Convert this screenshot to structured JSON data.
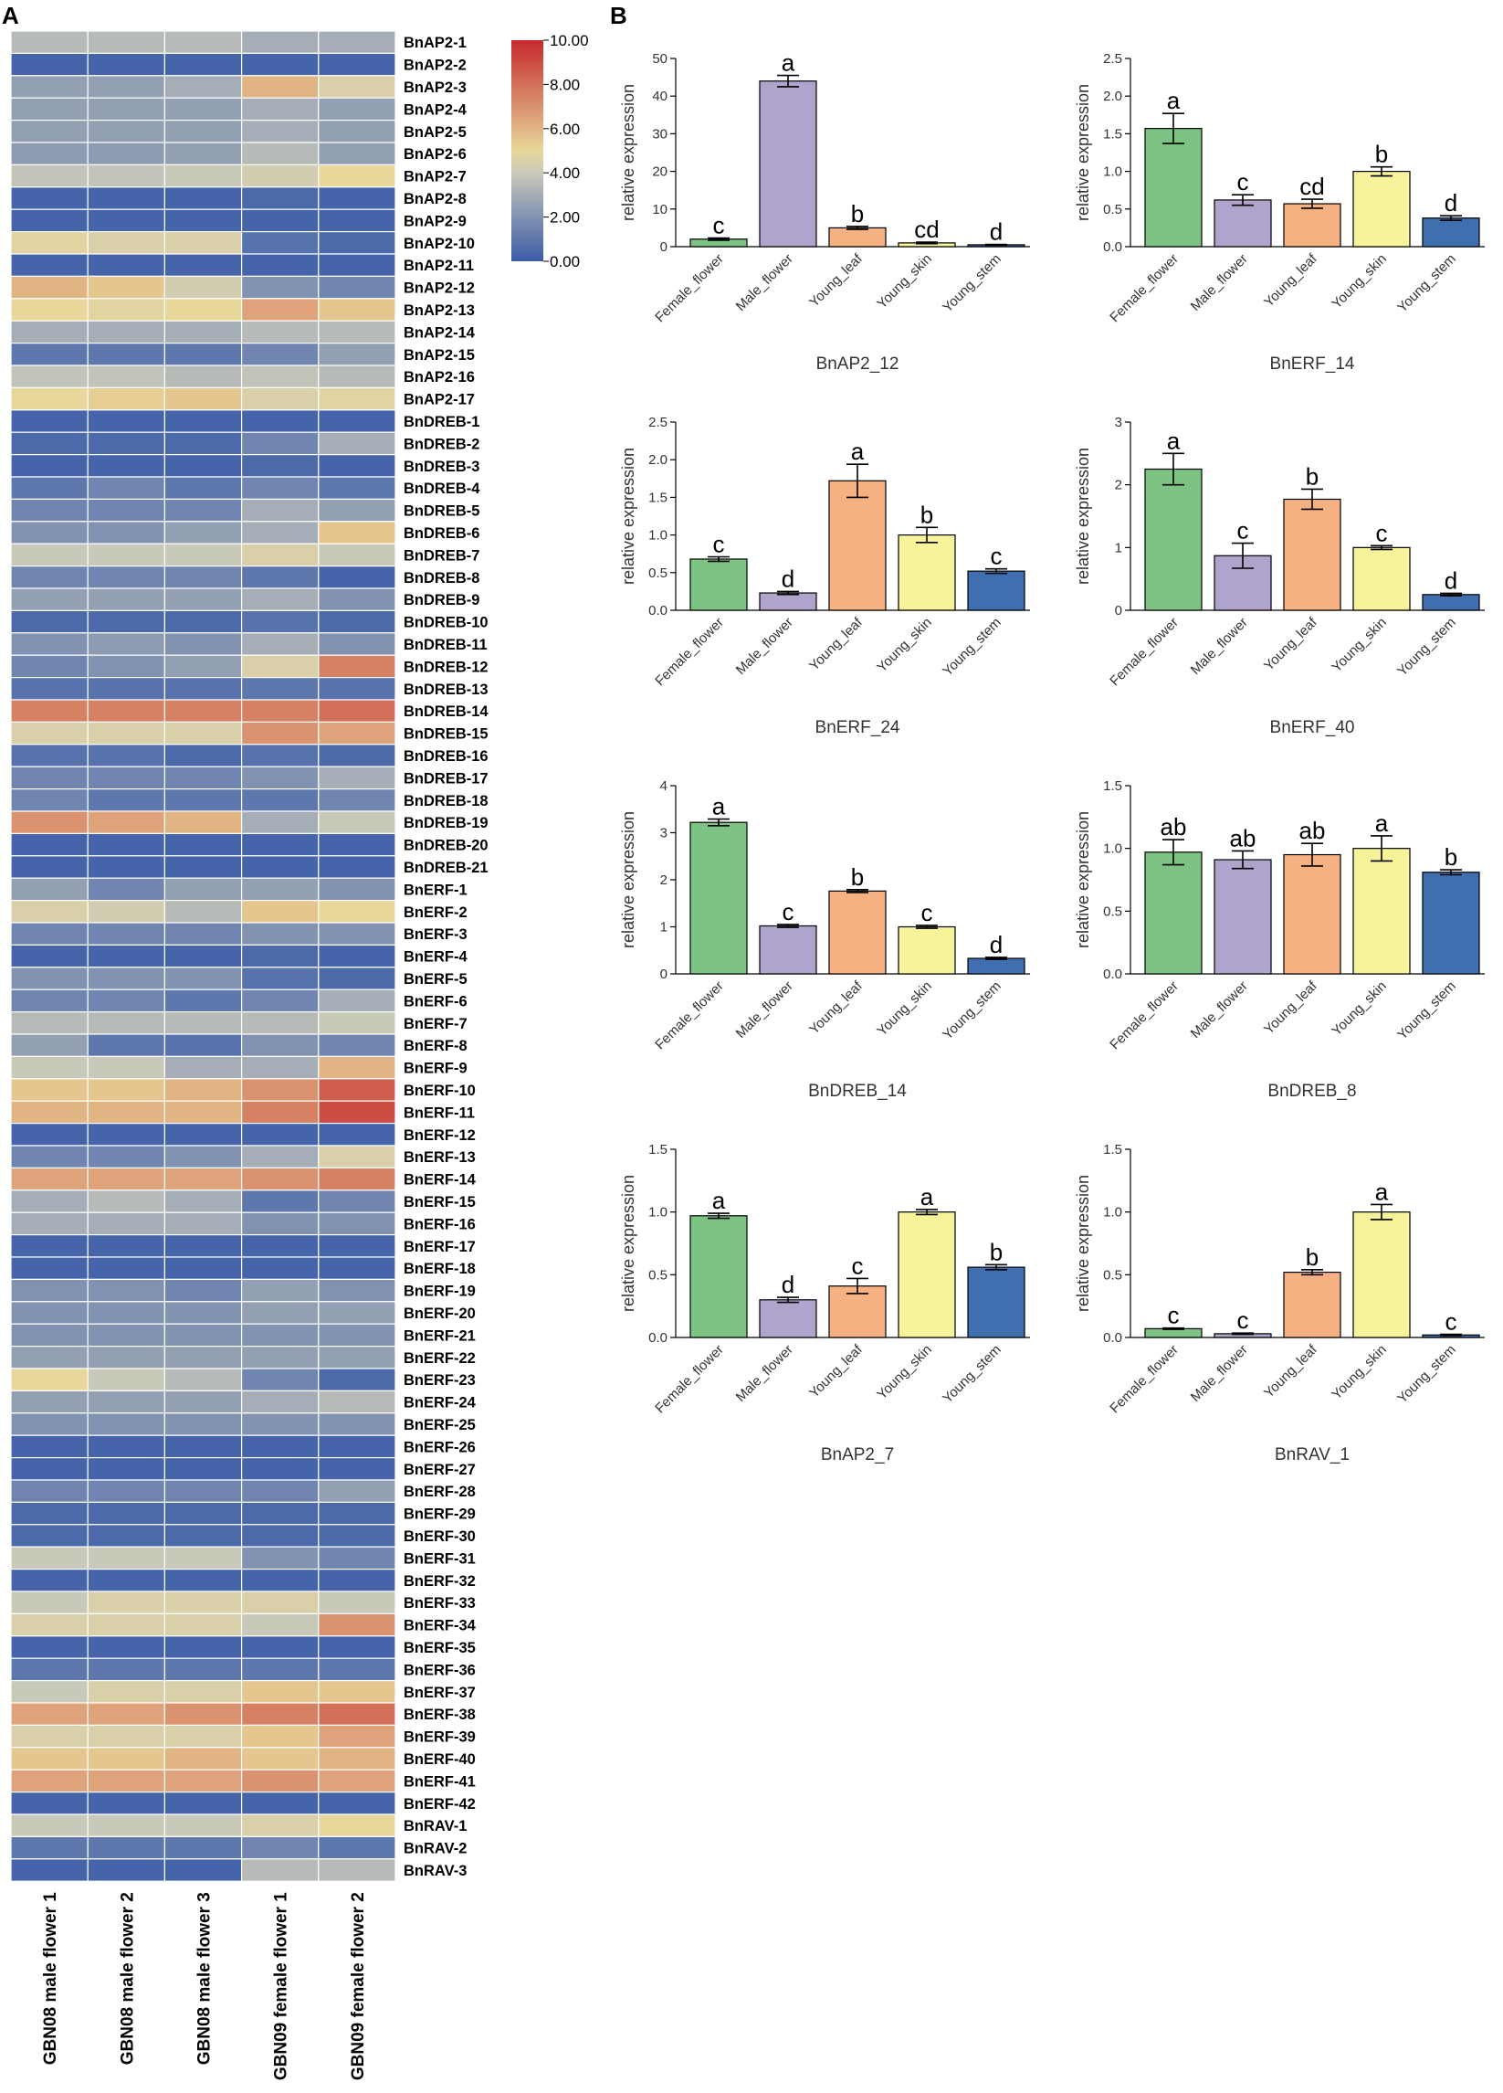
{
  "panels": {
    "a": "A",
    "b": "B"
  },
  "heatmap": {
    "columns": [
      "GBN08 male flower 1",
      "GBN08 male flower 2",
      "GBN08 male flower 3",
      "GBN09 female flower 1",
      "GBN09 female flower 2"
    ],
    "colorbar": {
      "min": 0,
      "max": 10,
      "ticks": [
        "10.00",
        "8.00",
        "6.00",
        "4.00",
        "2.00",
        "0.00"
      ],
      "colors": [
        "#3a5ca8",
        "#c9c9ba",
        "#e8d79a",
        "#c52a2e"
      ]
    },
    "rows": [
      {
        "gene": "BnAP2-1",
        "values": [
          3.5,
          3.5,
          3.5,
          3.0,
          3.0
        ]
      },
      {
        "gene": "BnAP2-2",
        "values": [
          0.3,
          0.3,
          0.3,
          0.3,
          0.3
        ]
      },
      {
        "gene": "BnAP2-3",
        "values": [
          2.5,
          2.5,
          3.0,
          6.0,
          4.5
        ]
      },
      {
        "gene": "BnAP2-4",
        "values": [
          2.5,
          2.5,
          2.5,
          3.0,
          2.5
        ]
      },
      {
        "gene": "BnAP2-5",
        "values": [
          2.5,
          2.5,
          2.5,
          3.0,
          2.5
        ]
      },
      {
        "gene": "BnAP2-6",
        "values": [
          2.3,
          2.3,
          2.5,
          3.5,
          2.5
        ]
      },
      {
        "gene": "BnAP2-7",
        "values": [
          3.8,
          3.8,
          4.0,
          4.3,
          5.0
        ]
      },
      {
        "gene": "BnAP2-8",
        "values": [
          0.3,
          0.3,
          0.3,
          0.5,
          0.3
        ]
      },
      {
        "gene": "BnAP2-9",
        "values": [
          0.3,
          0.3,
          0.3,
          0.3,
          0.3
        ]
      },
      {
        "gene": "BnAP2-10",
        "values": [
          4.8,
          4.5,
          4.5,
          0.8,
          0.5
        ]
      },
      {
        "gene": "BnAP2-11",
        "values": [
          0.3,
          0.3,
          0.3,
          0.3,
          0.3
        ]
      },
      {
        "gene": "BnAP2-12",
        "values": [
          6.0,
          5.5,
          4.3,
          2.0,
          1.5
        ]
      },
      {
        "gene": "BnAP2-13",
        "values": [
          5.0,
          4.8,
          5.0,
          6.5,
          5.5
        ]
      },
      {
        "gene": "BnAP2-14",
        "values": [
          3.0,
          3.0,
          3.0,
          3.5,
          3.5
        ]
      },
      {
        "gene": "BnAP2-15",
        "values": [
          1.0,
          1.0,
          1.0,
          1.5,
          2.5
        ]
      },
      {
        "gene": "BnAP2-16",
        "values": [
          3.8,
          3.8,
          3.5,
          3.8,
          3.5
        ]
      },
      {
        "gene": "BnAP2-17",
        "values": [
          5.0,
          5.3,
          5.5,
          4.5,
          4.8
        ]
      },
      {
        "gene": "BnDREB-1",
        "values": [
          0.3,
          0.3,
          0.3,
          0.3,
          0.3
        ]
      },
      {
        "gene": "BnDREB-2",
        "values": [
          0.5,
          0.5,
          0.5,
          1.5,
          3.0
        ]
      },
      {
        "gene": "BnDREB-3",
        "values": [
          0.3,
          0.3,
          0.3,
          0.5,
          0.3
        ]
      },
      {
        "gene": "BnDREB-4",
        "values": [
          1.0,
          1.5,
          1.0,
          1.5,
          1.0
        ]
      },
      {
        "gene": "BnDREB-5",
        "values": [
          1.5,
          1.5,
          1.5,
          3.0,
          2.5
        ]
      },
      {
        "gene": "BnDREB-6",
        "values": [
          2.0,
          2.0,
          2.5,
          3.0,
          5.5
        ]
      },
      {
        "gene": "BnDREB-7",
        "values": [
          4.0,
          4.0,
          4.0,
          4.5,
          4.0
        ]
      },
      {
        "gene": "BnDREB-8",
        "values": [
          1.5,
          1.5,
          1.5,
          1.0,
          0.3
        ]
      },
      {
        "gene": "BnDREB-9",
        "values": [
          2.5,
          2.5,
          2.5,
          3.0,
          2.0
        ]
      },
      {
        "gene": "BnDREB-10",
        "values": [
          0.5,
          0.5,
          0.5,
          0.8,
          0.5
        ]
      },
      {
        "gene": "BnDREB-11",
        "values": [
          2.0,
          2.3,
          2.0,
          3.0,
          2.0
        ]
      },
      {
        "gene": "BnDREB-12",
        "values": [
          1.5,
          2.0,
          2.5,
          4.5,
          7.5
        ]
      },
      {
        "gene": "BnDREB-13",
        "values": [
          0.8,
          0.8,
          0.8,
          1.0,
          0.8
        ]
      },
      {
        "gene": "BnDREB-14",
        "values": [
          7.5,
          7.5,
          7.5,
          7.5,
          8.0
        ]
      },
      {
        "gene": "BnDREB-15",
        "values": [
          4.5,
          4.5,
          4.5,
          7.0,
          6.5
        ]
      },
      {
        "gene": "BnDREB-16",
        "values": [
          0.8,
          0.8,
          0.5,
          0.8,
          0.5
        ]
      },
      {
        "gene": "BnDREB-17",
        "values": [
          1.5,
          1.5,
          1.5,
          2.0,
          3.0
        ]
      },
      {
        "gene": "BnDREB-18",
        "values": [
          1.5,
          1.0,
          1.0,
          1.0,
          1.5
        ]
      },
      {
        "gene": "BnDREB-19",
        "values": [
          7.0,
          6.5,
          6.0,
          3.0,
          4.0
        ]
      },
      {
        "gene": "BnDREB-20",
        "values": [
          0.3,
          0.3,
          0.3,
          0.3,
          0.3
        ]
      },
      {
        "gene": "BnDREB-21",
        "values": [
          0.3,
          0.3,
          0.3,
          0.3,
          0.3
        ]
      },
      {
        "gene": "BnERF-1",
        "values": [
          2.5,
          1.5,
          2.5,
          2.5,
          2.0
        ]
      },
      {
        "gene": "BnERF-2",
        "values": [
          4.5,
          4.3,
          3.5,
          5.5,
          5.0
        ]
      },
      {
        "gene": "BnERF-3",
        "values": [
          1.5,
          1.5,
          1.5,
          2.0,
          2.0
        ]
      },
      {
        "gene": "BnERF-4",
        "values": [
          0.3,
          0.3,
          0.3,
          0.5,
          0.3
        ]
      },
      {
        "gene": "BnERF-5",
        "values": [
          2.0,
          2.0,
          2.0,
          0.8,
          0.5
        ]
      },
      {
        "gene": "BnERF-6",
        "values": [
          1.5,
          1.5,
          1.0,
          1.5,
          3.0
        ]
      },
      {
        "gene": "BnERF-7",
        "values": [
          3.5,
          3.5,
          3.5,
          3.5,
          4.0
        ]
      },
      {
        "gene": "BnERF-8",
        "values": [
          2.5,
          1.0,
          0.8,
          2.0,
          1.5
        ]
      },
      {
        "gene": "BnERF-9",
        "values": [
          4.0,
          4.0,
          3.0,
          3.0,
          6.0
        ]
      },
      {
        "gene": "BnERF-10",
        "values": [
          5.5,
          5.5,
          6.0,
          7.0,
          8.5
        ]
      },
      {
        "gene": "BnERF-11",
        "values": [
          6.0,
          6.0,
          6.0,
          7.5,
          9.0
        ]
      },
      {
        "gene": "BnERF-12",
        "values": [
          0.3,
          0.3,
          0.3,
          0.3,
          0.3
        ]
      },
      {
        "gene": "BnERF-13",
        "values": [
          1.5,
          1.5,
          2.0,
          3.0,
          4.5
        ]
      },
      {
        "gene": "BnERF-14",
        "values": [
          6.5,
          6.5,
          6.5,
          7.0,
          7.5
        ]
      },
      {
        "gene": "BnERF-15",
        "values": [
          3.0,
          3.5,
          3.0,
          1.0,
          1.5
        ]
      },
      {
        "gene": "BnERF-16",
        "values": [
          3.0,
          3.0,
          3.0,
          2.0,
          2.0
        ]
      },
      {
        "gene": "BnERF-17",
        "values": [
          0.3,
          0.3,
          0.3,
          0.3,
          0.3
        ]
      },
      {
        "gene": "BnERF-18",
        "values": [
          0.3,
          0.3,
          0.3,
          0.3,
          0.3
        ]
      },
      {
        "gene": "BnERF-19",
        "values": [
          2.0,
          2.0,
          1.5,
          2.5,
          2.0
        ]
      },
      {
        "gene": "BnERF-20",
        "values": [
          2.0,
          2.0,
          2.0,
          2.5,
          2.5
        ]
      },
      {
        "gene": "BnERF-21",
        "values": [
          2.0,
          2.0,
          2.0,
          2.0,
          2.0
        ]
      },
      {
        "gene": "BnERF-22",
        "values": [
          2.5,
          2.5,
          2.5,
          2.5,
          2.5
        ]
      },
      {
        "gene": "BnERF-23",
        "values": [
          5.0,
          4.0,
          3.5,
          1.5,
          0.5
        ]
      },
      {
        "gene": "BnERF-24",
        "values": [
          2.5,
          2.5,
          2.5,
          3.0,
          3.5
        ]
      },
      {
        "gene": "BnERF-25",
        "values": [
          2.0,
          2.0,
          2.0,
          2.0,
          2.0
        ]
      },
      {
        "gene": "BnERF-26",
        "values": [
          0.3,
          0.3,
          0.3,
          0.3,
          0.3
        ]
      },
      {
        "gene": "BnERF-27",
        "values": [
          0.3,
          0.3,
          0.3,
          0.3,
          0.3
        ]
      },
      {
        "gene": "BnERF-28",
        "values": [
          1.5,
          1.5,
          1.5,
          1.5,
          2.5
        ]
      },
      {
        "gene": "BnERF-29",
        "values": [
          0.5,
          0.5,
          0.5,
          0.5,
          0.5
        ]
      },
      {
        "gene": "BnERF-30",
        "values": [
          0.5,
          0.5,
          0.5,
          0.5,
          0.5
        ]
      },
      {
        "gene": "BnERF-31",
        "values": [
          4.0,
          4.0,
          4.0,
          2.0,
          1.5
        ]
      },
      {
        "gene": "BnERF-32",
        "values": [
          0.3,
          0.3,
          0.3,
          0.3,
          0.3
        ]
      },
      {
        "gene": "BnERF-33",
        "values": [
          4.0,
          4.5,
          4.5,
          4.5,
          4.0
        ]
      },
      {
        "gene": "BnERF-34",
        "values": [
          4.5,
          4.5,
          4.5,
          4.0,
          7.0
        ]
      },
      {
        "gene": "BnERF-35",
        "values": [
          0.3,
          0.3,
          0.3,
          0.3,
          0.3
        ]
      },
      {
        "gene": "BnERF-36",
        "values": [
          1.0,
          1.0,
          1.0,
          1.0,
          1.0
        ]
      },
      {
        "gene": "BnERF-37",
        "values": [
          4.0,
          4.5,
          4.5,
          5.5,
          5.5
        ]
      },
      {
        "gene": "BnERF-38",
        "values": [
          6.5,
          6.5,
          7.0,
          7.5,
          8.0
        ]
      },
      {
        "gene": "BnERF-39",
        "values": [
          4.5,
          4.5,
          4.5,
          5.5,
          6.5
        ]
      },
      {
        "gene": "BnERF-40",
        "values": [
          5.5,
          5.5,
          6.0,
          5.5,
          6.0
        ]
      },
      {
        "gene": "BnERF-41",
        "values": [
          6.5,
          6.5,
          6.5,
          7.0,
          6.5
        ]
      },
      {
        "gene": "BnERF-42",
        "values": [
          0.3,
          0.3,
          0.3,
          0.3,
          0.3
        ]
      },
      {
        "gene": "BnRAV-1",
        "values": [
          4.0,
          4.0,
          4.0,
          4.5,
          5.0
        ]
      },
      {
        "gene": "BnRAV-2",
        "values": [
          1.0,
          1.0,
          1.0,
          1.5,
          1.0
        ]
      },
      {
        "gene": "BnRAV-3",
        "values": [
          0.3,
          0.3,
          0.3,
          3.5,
          3.5
        ]
      }
    ]
  },
  "chart_data": [
    {
      "type": "bar",
      "title": "BnAP2_12",
      "ylabel": "relative expression",
      "ylim": [
        0,
        50
      ],
      "yticks": [
        0,
        10,
        20,
        30,
        40,
        50
      ],
      "tick_labels": [
        "0",
        "10",
        "20",
        "30",
        "40",
        "50"
      ],
      "categories": [
        "Female_flower",
        "Male_flower",
        "Young_leaf",
        "Young_skin",
        "Young_stem"
      ],
      "values": [
        2,
        44,
        5,
        1,
        0.5
      ],
      "errors": [
        0.3,
        1.5,
        0.4,
        0.2,
        0.1
      ],
      "letters": [
        "c",
        "a",
        "b",
        "cd",
        "d"
      ]
    },
    {
      "type": "bar",
      "title": "BnERF_14",
      "ylabel": "relative expression",
      "ylim": [
        0,
        2.5
      ],
      "yticks": [
        0,
        0.5,
        1,
        1.5,
        2,
        2.5
      ],
      "tick_labels": [
        "0.0",
        "0.5",
        "1.0",
        "1.5",
        "2.0",
        "2.5"
      ],
      "categories": [
        "Female_flower",
        "Male_flower",
        "Young_leaf",
        "Young_skin",
        "Young_stem"
      ],
      "values": [
        1.57,
        0.62,
        0.57,
        1.0,
        0.38
      ],
      "errors": [
        0.2,
        0.07,
        0.06,
        0.06,
        0.03
      ],
      "letters": [
        "a",
        "c",
        "cd",
        "b",
        "d"
      ]
    },
    {
      "type": "bar",
      "title": "BnERF_24",
      "ylabel": "relative expression",
      "ylim": [
        0,
        2.5
      ],
      "yticks": [
        0,
        0.5,
        1,
        1.5,
        2,
        2.5
      ],
      "tick_labels": [
        "0.0",
        "0.5",
        "1.0",
        "1.5",
        "2.0",
        "2.5"
      ],
      "categories": [
        "Female_flower",
        "Male_flower",
        "Young_leaf",
        "Young_skin",
        "Young_stem"
      ],
      "values": [
        0.68,
        0.23,
        1.72,
        1.0,
        0.52
      ],
      "errors": [
        0.03,
        0.02,
        0.22,
        0.1,
        0.03
      ],
      "letters": [
        "c",
        "d",
        "a",
        "b",
        "c"
      ]
    },
    {
      "type": "bar",
      "title": "BnERF_40",
      "ylabel": "relative expression",
      "ylim": [
        0,
        3
      ],
      "yticks": [
        0,
        1,
        2,
        3
      ],
      "tick_labels": [
        "0",
        "1",
        "2",
        "3"
      ],
      "categories": [
        "Female_flower",
        "Male_flower",
        "Young_leaf",
        "Young_skin",
        "Young_stem"
      ],
      "values": [
        2.25,
        0.87,
        1.77,
        1.0,
        0.25
      ],
      "errors": [
        0.25,
        0.2,
        0.16,
        0.03,
        0.02
      ],
      "letters": [
        "a",
        "c",
        "b",
        "c",
        "d"
      ]
    },
    {
      "type": "bar",
      "title": "BnDREB_14",
      "ylabel": "relative expression",
      "ylim": [
        0,
        4
      ],
      "yticks": [
        0,
        1,
        2,
        3,
        4
      ],
      "tick_labels": [
        "0",
        "1",
        "2",
        "3",
        "4"
      ],
      "categories": [
        "Female_flower",
        "Male_flower",
        "Young_leaf",
        "Young_skin",
        "Young_stem"
      ],
      "values": [
        3.22,
        1.02,
        1.76,
        1.0,
        0.33
      ],
      "errors": [
        0.07,
        0.03,
        0.03,
        0.03,
        0.02
      ],
      "letters": [
        "a",
        "c",
        "b",
        "c",
        "d"
      ]
    },
    {
      "type": "bar",
      "title": "BnDREB_8",
      "ylabel": "relative expression",
      "ylim": [
        0,
        1.5
      ],
      "yticks": [
        0,
        0.5,
        1,
        1.5
      ],
      "tick_labels": [
        "0.0",
        "0.5",
        "1.0",
        "1.5"
      ],
      "categories": [
        "Female_flower",
        "Male_flower",
        "Young_leaf",
        "Young_skin",
        "Young_stem"
      ],
      "values": [
        0.97,
        0.91,
        0.95,
        1.0,
        0.81
      ],
      "errors": [
        0.1,
        0.07,
        0.09,
        0.1,
        0.02
      ],
      "letters": [
        "ab",
        "ab",
        "ab",
        "a",
        "b"
      ]
    },
    {
      "type": "bar",
      "title": "BnAP2_7",
      "ylabel": "relative expression",
      "ylim": [
        0,
        1.5
      ],
      "yticks": [
        0,
        0.5,
        1,
        1.5
      ],
      "tick_labels": [
        "0.0",
        "0.5",
        "1.0",
        "1.5"
      ],
      "categories": [
        "Female_flower",
        "Male_flower",
        "Young_leaf",
        "Young_skin",
        "Young_stem"
      ],
      "values": [
        0.97,
        0.3,
        0.41,
        1.0,
        0.56
      ],
      "errors": [
        0.02,
        0.02,
        0.06,
        0.02,
        0.02
      ],
      "letters": [
        "a",
        "d",
        "c",
        "a",
        "b"
      ]
    },
    {
      "type": "bar",
      "title": "BnRAV_1",
      "ylabel": "relative expression",
      "ylim": [
        0,
        1.5
      ],
      "yticks": [
        0,
        0.5,
        1,
        1.5
      ],
      "tick_labels": [
        "0.0",
        "0.5",
        "1.0",
        "1.5"
      ],
      "categories": [
        "Female_flower",
        "Male_flower",
        "Young_leaf",
        "Young_skin",
        "Young_stem"
      ],
      "values": [
        0.07,
        0.03,
        0.52,
        1.0,
        0.02
      ],
      "errors": [
        0.005,
        0.005,
        0.02,
        0.06,
        0.005
      ],
      "letters": [
        "c",
        "c",
        "b",
        "a",
        "c"
      ]
    }
  ],
  "colors": {
    "bars": [
      "#7dc383",
      "#b0a3cc",
      "#f6b183",
      "#f6f39b",
      "#3f6fae"
    ],
    "edge": "#000000",
    "axis": "#000000"
  }
}
